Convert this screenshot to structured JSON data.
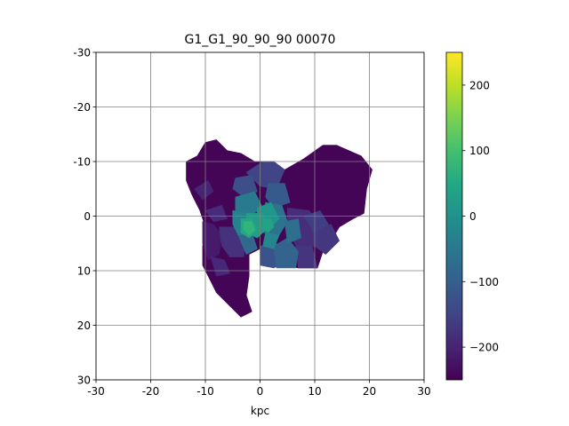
{
  "chart_data": {
    "type": "heatmap",
    "title": "G1_G1_90_90_90   00070",
    "xlabel": "kpc",
    "ylabel": "",
    "xlim": [
      -30,
      30
    ],
    "ylim": [
      -30,
      30
    ],
    "y_inverted": true,
    "grid": true,
    "xticks": [
      -30,
      -20,
      -10,
      0,
      10,
      20,
      30
    ],
    "xtick_labels": [
      "-30",
      "-20",
      "-10",
      "0",
      "10",
      "20",
      "30"
    ],
    "yticks": [
      -30,
      -20,
      -10,
      0,
      10,
      20,
      30
    ],
    "ytick_labels": [
      "-30",
      "-20",
      "-10",
      "0",
      "10",
      "20",
      "30"
    ],
    "colorbar": {
      "colormap": "viridis",
      "range": [
        -250,
        250
      ],
      "ticks": [
        -200,
        -100,
        0,
        100,
        200
      ],
      "tick_labels": [
        "−200",
        "−100",
        "0",
        "100",
        "200"
      ]
    },
    "patches": [
      {
        "value": -245,
        "points": [
          [
            -13.5,
            -6.5
          ],
          [
            -13.5,
            -10.0
          ],
          [
            -11.5,
            -11.0
          ],
          [
            -10.0,
            -13.5
          ],
          [
            -8.0,
            -14.0
          ],
          [
            -6.0,
            -12.0
          ],
          [
            -3.5,
            -11.5
          ],
          [
            -1.0,
            -10.0
          ],
          [
            2.5,
            -10.0
          ],
          [
            4.5,
            -8.5
          ],
          [
            8.0,
            -10.5
          ],
          [
            11.5,
            -13.0
          ],
          [
            14.0,
            -13.0
          ],
          [
            18.5,
            -11.0
          ],
          [
            20.5,
            -8.5
          ],
          [
            19.5,
            -5.0
          ],
          [
            19.0,
            -0.5
          ],
          [
            17.0,
            0.5
          ],
          [
            14.5,
            2.0
          ],
          [
            13.0,
            4.5
          ],
          [
            11.5,
            6.5
          ],
          [
            10.5,
            9.5
          ],
          [
            7.0,
            9.5
          ],
          [
            4.0,
            9.0
          ],
          [
            2.5,
            6.5
          ],
          [
            0.0,
            6.0
          ],
          [
            -2.0,
            7.0
          ],
          [
            -2.0,
            11.0
          ],
          [
            -2.5,
            14.5
          ],
          [
            -1.5,
            17.5
          ],
          [
            -3.5,
            18.5
          ],
          [
            -6.0,
            16.0
          ],
          [
            -8.0,
            14.0
          ],
          [
            -9.0,
            12.0
          ],
          [
            -10.5,
            9.0
          ],
          [
            -10.5,
            5.5
          ],
          [
            -10.0,
            2.0
          ],
          [
            -11.0,
            -1.0
          ],
          [
            -12.5,
            -4.0
          ]
        ]
      },
      {
        "value": -215,
        "points": [
          [
            -10.5,
            1.0
          ],
          [
            -8.5,
            1.5
          ],
          [
            -7.0,
            3.5
          ],
          [
            -7.5,
            7.0
          ],
          [
            -9.5,
            8.0
          ],
          [
            -10.5,
            5.0
          ]
        ]
      },
      {
        "value": -180,
        "points": [
          [
            -7.5,
            2.0
          ],
          [
            -4.0,
            2.0
          ],
          [
            -2.5,
            4.0
          ],
          [
            -3.0,
            7.5
          ],
          [
            -5.5,
            7.5
          ],
          [
            -7.0,
            5.5
          ]
        ]
      },
      {
        "value": -200,
        "points": [
          [
            -12.0,
            -5.0
          ],
          [
            -9.5,
            -6.5
          ],
          [
            -8.5,
            -4.5
          ],
          [
            -10.5,
            -3.0
          ]
        ]
      },
      {
        "value": -190,
        "points": [
          [
            -10.0,
            -1.0
          ],
          [
            -7.0,
            -2.0
          ],
          [
            -6.0,
            0.5
          ],
          [
            -8.5,
            1.0
          ]
        ]
      },
      {
        "value": -195,
        "points": [
          [
            -9.0,
            7.5
          ],
          [
            -6.5,
            8.0
          ],
          [
            -5.5,
            10.5
          ],
          [
            -8.0,
            11.0
          ]
        ]
      },
      {
        "value": -185,
        "points": [
          [
            5.0,
            -1.5
          ],
          [
            9.0,
            -1.0
          ],
          [
            11.0,
            2.0
          ],
          [
            10.5,
            5.5
          ],
          [
            7.0,
            6.0
          ],
          [
            5.0,
            3.0
          ]
        ]
      },
      {
        "value": -175,
        "points": [
          [
            6.5,
            5.5
          ],
          [
            9.5,
            5.5
          ],
          [
            10.5,
            9.5
          ],
          [
            7.0,
            9.5
          ]
        ]
      },
      {
        "value": -170,
        "points": [
          [
            9.5,
            2.5
          ],
          [
            13.0,
            1.5
          ],
          [
            14.5,
            4.5
          ],
          [
            12.0,
            7.0
          ],
          [
            10.0,
            5.5
          ]
        ]
      },
      {
        "value": -160,
        "points": [
          [
            8.0,
            0.0
          ],
          [
            11.0,
            -1.0
          ],
          [
            12.5,
            1.5
          ],
          [
            10.0,
            3.0
          ]
        ]
      },
      {
        "value": -150,
        "points": [
          [
            -2.5,
            -8.0
          ],
          [
            0.5,
            -10.0
          ],
          [
            2.5,
            -10.0
          ],
          [
            4.5,
            -8.5
          ],
          [
            3.0,
            -5.0
          ],
          [
            0.0,
            -5.5
          ]
        ]
      },
      {
        "value": -130,
        "points": [
          [
            -4.5,
            -7.0
          ],
          [
            -1.5,
            -7.5
          ],
          [
            -0.5,
            -4.5
          ],
          [
            -3.0,
            -3.5
          ],
          [
            -5.0,
            -5.0
          ]
        ]
      },
      {
        "value": -110,
        "points": [
          [
            1.5,
            -6.0
          ],
          [
            4.5,
            -6.0
          ],
          [
            5.5,
            -2.5
          ],
          [
            2.5,
            -1.5
          ],
          [
            1.0,
            -3.5
          ]
        ]
      },
      {
        "value": -120,
        "points": [
          [
            0.0,
            5.5
          ],
          [
            3.0,
            5.0
          ],
          [
            4.5,
            8.5
          ],
          [
            2.5,
            9.5
          ],
          [
            0.0,
            9.0
          ]
        ]
      },
      {
        "value": -90,
        "points": [
          [
            2.5,
            5.5
          ],
          [
            5.0,
            4.0
          ],
          [
            7.0,
            6.5
          ],
          [
            6.5,
            9.5
          ],
          [
            3.0,
            9.5
          ]
        ]
      },
      {
        "value": -80,
        "points": [
          [
            -4.0,
            3.5
          ],
          [
            -1.5,
            3.0
          ],
          [
            -0.5,
            6.0
          ],
          [
            -2.5,
            7.0
          ]
        ]
      },
      {
        "value": -60,
        "points": [
          [
            1.0,
            -2.5
          ],
          [
            4.0,
            -2.0
          ],
          [
            5.0,
            1.0
          ],
          [
            3.5,
            3.5
          ],
          [
            0.5,
            3.0
          ]
        ]
      },
      {
        "value": -70,
        "points": [
          [
            4.5,
            1.0
          ],
          [
            7.0,
            0.5
          ],
          [
            7.5,
            4.0
          ],
          [
            5.0,
            5.0
          ]
        ]
      },
      {
        "value": -45,
        "points": [
          [
            -4.5,
            -3.5
          ],
          [
            -1.0,
            -4.5
          ],
          [
            0.5,
            -1.5
          ],
          [
            -2.0,
            0.0
          ],
          [
            -4.5,
            -1.0
          ]
        ]
      },
      {
        "value": -30,
        "points": [
          [
            -5.0,
            -1.0
          ],
          [
            -2.0,
            -0.5
          ],
          [
            -1.0,
            3.0
          ],
          [
            -4.0,
            3.5
          ],
          [
            -5.0,
            1.5
          ]
        ]
      },
      {
        "value": -20,
        "points": [
          [
            1.0,
            3.0
          ],
          [
            3.5,
            3.5
          ],
          [
            2.5,
            6.0
          ],
          [
            0.5,
            5.5
          ]
        ]
      },
      {
        "value": 10,
        "points": [
          [
            -0.5,
            -1.5
          ],
          [
            2.0,
            -2.5
          ],
          [
            3.5,
            0.5
          ],
          [
            1.5,
            2.5
          ],
          [
            -0.5,
            1.5
          ]
        ]
      },
      {
        "value": 25,
        "points": [
          [
            -2.5,
            -0.5
          ],
          [
            0.5,
            -0.5
          ],
          [
            1.5,
            2.0
          ],
          [
            -0.5,
            4.0
          ],
          [
            -2.5,
            3.0
          ]
        ]
      },
      {
        "value": 50,
        "points": [
          [
            -3.5,
            0.5
          ],
          [
            -1.5,
            0.5
          ],
          [
            -0.5,
            2.5
          ],
          [
            -2.0,
            4.0
          ],
          [
            -3.5,
            3.0
          ]
        ]
      },
      {
        "value": 75,
        "points": [
          [
            -3.0,
            1.0
          ],
          [
            -1.5,
            1.0
          ],
          [
            -1.0,
            2.5
          ],
          [
            -2.0,
            3.5
          ],
          [
            -3.0,
            2.5
          ]
        ]
      },
      {
        "value": 40,
        "points": [
          [
            0.5,
            0.5
          ],
          [
            2.0,
            0.5
          ],
          [
            2.5,
            2.0
          ],
          [
            1.5,
            3.0
          ],
          [
            0.5,
            2.5
          ]
        ]
      }
    ]
  }
}
